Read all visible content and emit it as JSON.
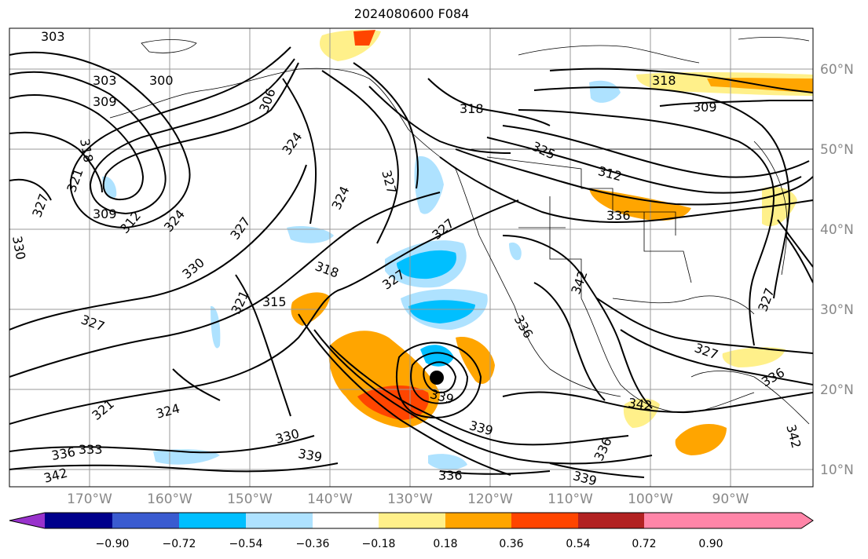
{
  "title": "2024080600 F084",
  "lat_labels": [
    "60°N",
    "50°N",
    "40°N",
    "30°N",
    "20°N",
    "10°N"
  ],
  "lon_labels": [
    "170°W",
    "160°W",
    "150°W",
    "140°W",
    "130°W",
    "120°W",
    "110°W",
    "100°W",
    "90°W"
  ],
  "colorbar": {
    "colors": [
      "#9932cc",
      "#00008b",
      "#3a5bd0",
      "#00bfff",
      "#aee2ff",
      "#ffffff",
      "#fff08a",
      "#ffa500",
      "#ff4500",
      "#b22222",
      "#ff85a8"
    ],
    "tick_labels": [
      "−0.90",
      "−0.72",
      "−0.54",
      "−0.36",
      "−0.18",
      "0.18",
      "0.36",
      "0.54",
      "0.72",
      "0.90"
    ]
  },
  "contour_labels": [
    "303",
    "300",
    "306",
    "303",
    "309",
    "318",
    "321",
    "327",
    "309",
    "312",
    "324",
    "327",
    "330",
    "324",
    "327",
    "324",
    "318",
    "321",
    "315",
    "327",
    "321",
    "324",
    "330",
    "336",
    "333",
    "339",
    "342",
    "336",
    "339",
    "336",
    "342",
    "339",
    "327",
    "342",
    "336",
    "339",
    "318",
    "325",
    "312",
    "309",
    "318",
    "336",
    "342",
    "327",
    "330",
    "327",
    "336",
    "327"
  ]
}
